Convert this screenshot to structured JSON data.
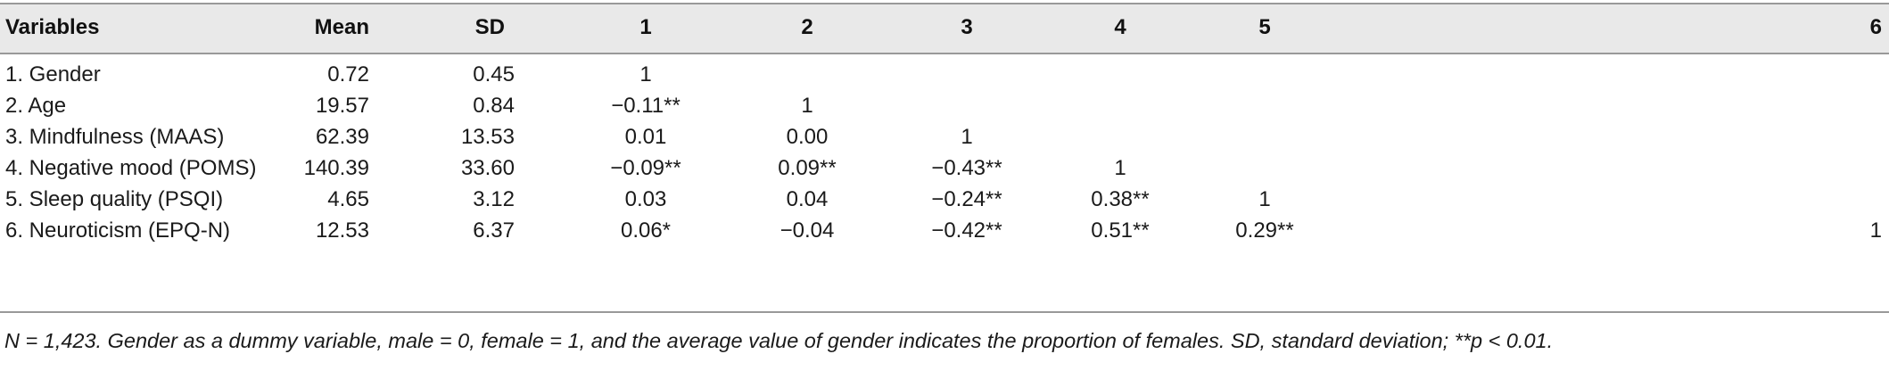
{
  "table": {
    "headers": [
      "Variables",
      "Mean",
      "SD",
      "1",
      "2",
      "3",
      "4",
      "5",
      "6"
    ],
    "rows": [
      {
        "variable": "1. Gender",
        "mean": "0.72",
        "sd": "0.45",
        "c1": "1",
        "c2": "",
        "c3": "",
        "c4": "",
        "c5": "",
        "c6": ""
      },
      {
        "variable": "2. Age",
        "mean": "19.57",
        "sd": "0.84",
        "c1": "−0.11**",
        "c2": "1",
        "c3": "",
        "c4": "",
        "c5": "",
        "c6": ""
      },
      {
        "variable": "3. Mindfulness (MAAS)",
        "mean": "62.39",
        "sd": "13.53",
        "c1": "0.01",
        "c2": "0.00",
        "c3": "1",
        "c4": "",
        "c5": "",
        "c6": ""
      },
      {
        "variable": "4. Negative mood (POMS)",
        "mean": "140.39",
        "sd": "33.60",
        "c1": "−0.09**",
        "c2": "0.09**",
        "c3": "−0.43**",
        "c4": "1",
        "c5": "",
        "c6": ""
      },
      {
        "variable": "5. Sleep quality (PSQI)",
        "mean": "4.65",
        "sd": "3.12",
        "c1": "0.03",
        "c2": "0.04",
        "c3": "−0.24**",
        "c4": "0.38**",
        "c5": "1",
        "c6": ""
      },
      {
        "variable": "6. Neuroticism (EPQ-N)",
        "mean": "12.53",
        "sd": "6.37",
        "c1": "0.06*",
        "c2": "−0.04",
        "c3": "−0.42**",
        "c4": "0.51**",
        "c5": "0.29**",
        "c6": "1"
      }
    ]
  },
  "note": "N = 1,423. Gender as a dummy variable, male = 0, female = 1, and the average value of gender indicates the proportion of females. SD, standard deviation; **p < 0.01.",
  "colors": {
    "header_background": "#e9e9e9",
    "rule": "#999999",
    "text": "#1a1a1a"
  }
}
